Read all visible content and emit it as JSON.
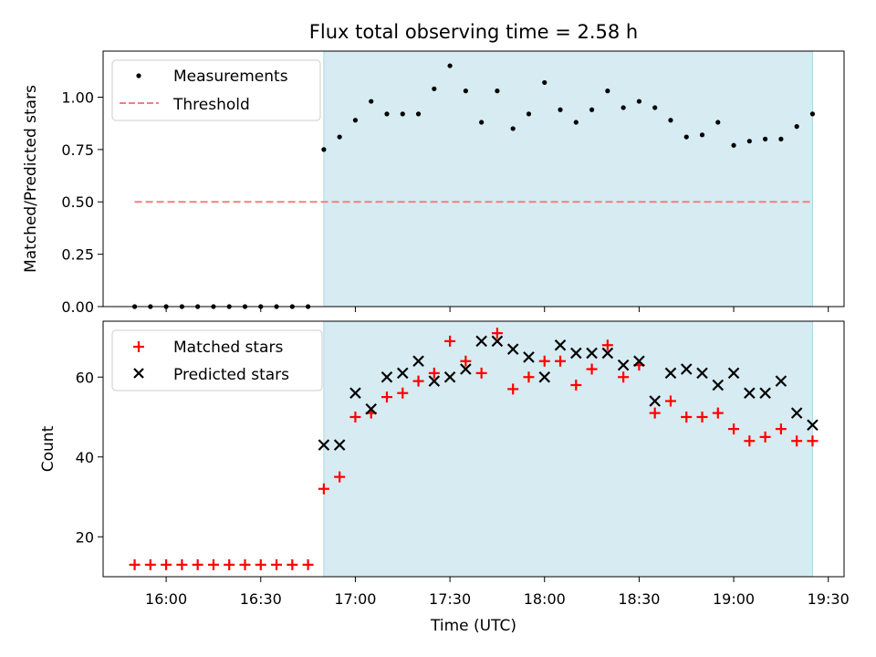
{
  "figure": {
    "title": "Flux total observing time = 2.58 h",
    "xlabel": "Time (UTC)"
  },
  "chart_data": [
    {
      "type": "scatter",
      "ylabel": "Matched/Predicted stars",
      "xlim": [
        "15:40",
        "19:35"
      ],
      "ylim": [
        0,
        1.22
      ],
      "yticks": [
        "0.00",
        "0.25",
        "0.50",
        "0.75",
        "1.00"
      ],
      "shaded_span": [
        "16:50",
        "19:25"
      ],
      "legend": "top-left",
      "series": [
        {
          "name": "Measurements",
          "marker": "dot",
          "color": "#000000",
          "x": [
            "15:50",
            "15:55",
            "16:00",
            "16:05",
            "16:10",
            "16:15",
            "16:20",
            "16:25",
            "16:30",
            "16:35",
            "16:40",
            "16:45",
            "16:50",
            "16:55",
            "17:00",
            "17:05",
            "17:10",
            "17:15",
            "17:20",
            "17:25",
            "17:30",
            "17:35",
            "17:40",
            "17:45",
            "17:50",
            "17:55",
            "18:00",
            "18:05",
            "18:10",
            "18:15",
            "18:20",
            "18:25",
            "18:30",
            "18:35",
            "18:40",
            "18:45",
            "18:50",
            "18:55",
            "19:00",
            "19:05",
            "19:10",
            "19:15",
            "19:20",
            "19:25"
          ],
          "values": [
            0,
            0,
            0,
            0,
            0,
            0,
            0,
            0,
            0,
            0,
            0,
            0,
            0.75,
            0.81,
            0.89,
            0.98,
            0.92,
            0.92,
            0.92,
            1.04,
            1.15,
            1.03,
            0.88,
            1.03,
            0.85,
            0.92,
            1.07,
            0.94,
            0.88,
            0.94,
            1.03,
            0.95,
            0.98,
            0.95,
            0.89,
            0.81,
            0.82,
            0.88,
            0.77,
            0.79,
            0.8,
            0.8,
            0.86,
            0.92
          ]
        },
        {
          "name": "Threshold",
          "marker": "dashed-line",
          "color": "#f08080",
          "x": [
            "15:50",
            "19:25"
          ],
          "values": [
            0.5,
            0.5
          ]
        }
      ]
    },
    {
      "type": "scatter",
      "ylabel": "Count",
      "xlim": [
        "15:40",
        "19:35"
      ],
      "ylim": [
        10,
        74
      ],
      "yticks": [
        "20",
        "40",
        "60"
      ],
      "xticks": [
        "16:00",
        "16:30",
        "17:00",
        "17:30",
        "18:00",
        "18:30",
        "19:00",
        "19:30"
      ],
      "shaded_span": [
        "16:50",
        "19:25"
      ],
      "legend": "top-left",
      "series": [
        {
          "name": "Matched stars",
          "marker": "plus",
          "color": "#ff0000",
          "x": [
            "15:50",
            "15:55",
            "16:00",
            "16:05",
            "16:10",
            "16:15",
            "16:20",
            "16:25",
            "16:30",
            "16:35",
            "16:40",
            "16:45",
            "16:50",
            "16:55",
            "17:00",
            "17:05",
            "17:10",
            "17:15",
            "17:20",
            "17:25",
            "17:30",
            "17:35",
            "17:40",
            "17:45",
            "17:50",
            "17:55",
            "18:00",
            "18:05",
            "18:10",
            "18:15",
            "18:20",
            "18:25",
            "18:30",
            "18:35",
            "18:40",
            "18:45",
            "18:50",
            "18:55",
            "19:00",
            "19:05",
            "19:10",
            "19:15",
            "19:20",
            "19:25"
          ],
          "values": [
            13,
            13,
            13,
            13,
            13,
            13,
            13,
            13,
            13,
            13,
            13,
            13,
            32,
            35,
            50,
            51,
            55,
            56,
            59,
            61,
            69,
            64,
            61,
            71,
            57,
            60,
            64,
            64,
            58,
            62,
            68,
            60,
            63,
            51,
            54,
            50,
            50,
            51,
            47,
            44,
            45,
            47,
            44,
            44
          ]
        },
        {
          "name": "Predicted stars",
          "marker": "x",
          "color": "#000000",
          "x": [
            "16:50",
            "16:55",
            "17:00",
            "17:05",
            "17:10",
            "17:15",
            "17:20",
            "17:25",
            "17:30",
            "17:35",
            "17:40",
            "17:45",
            "17:50",
            "17:55",
            "18:00",
            "18:05",
            "18:10",
            "18:15",
            "18:20",
            "18:25",
            "18:30",
            "18:35",
            "18:40",
            "18:45",
            "18:50",
            "18:55",
            "19:00",
            "19:05",
            "19:10",
            "19:15",
            "19:20",
            "19:25"
          ],
          "values": [
            43,
            43,
            56,
            52,
            60,
            61,
            64,
            59,
            60,
            62,
            69,
            69,
            67,
            65,
            60,
            68,
            66,
            66,
            66,
            63,
            64,
            54,
            61,
            62,
            61,
            58,
            61,
            56,
            56,
            59,
            51,
            48
          ]
        }
      ]
    }
  ],
  "colors": {
    "shade": "#add8e6",
    "shade_opacity": 0.5
  }
}
